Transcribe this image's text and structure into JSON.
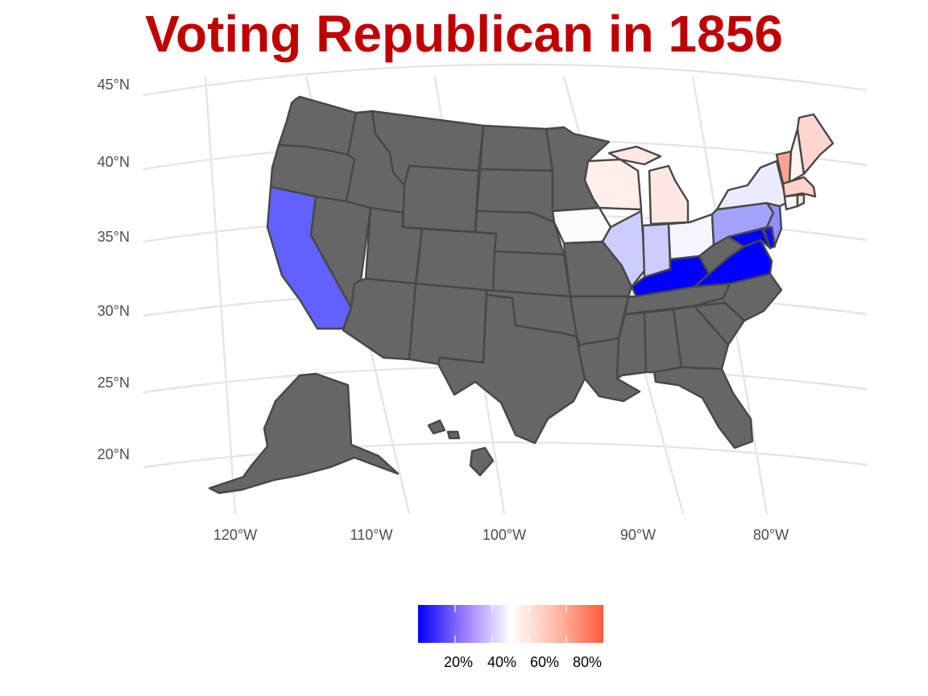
{
  "title": "Voting Republican in 1856",
  "colors": {
    "title": "#c00000",
    "no_data": "#666666",
    "state_border": "#474747",
    "gridline": "#e5e5e5",
    "scale_low": "#0000ff",
    "scale_mid": "#ffffff",
    "scale_high": "#ff5a3c"
  },
  "axes": {
    "lat_labels": [
      "45°N",
      "40°N",
      "35°N",
      "30°N",
      "25°N",
      "20°N"
    ],
    "lon_labels": [
      "120°W",
      "110°W",
      "100°W",
      "90°W",
      "80°W"
    ]
  },
  "legend": {
    "position": "bottom",
    "range": [
      0,
      1
    ],
    "tick_labels": [
      "20%",
      "40%",
      "60%",
      "80%"
    ],
    "tick_values": [
      0.2,
      0.4,
      0.6,
      0.8
    ]
  },
  "chart_data": {
    "type": "choropleth",
    "title": "Voting Republican in 1856",
    "grid": true,
    "legend_position": "bottom",
    "no_data_states": [
      "Washington",
      "Oregon",
      "Idaho",
      "Montana",
      "Wyoming",
      "Nevada",
      "Utah",
      "Colorado",
      "Arizona",
      "New Mexico",
      "North Dakota",
      "South Dakota",
      "Nebraska",
      "Kansas",
      "Oklahoma",
      "Texas",
      "Minnesota",
      "Missouri",
      "Arkansas",
      "Louisiana",
      "Mississippi",
      "Alabama",
      "Georgia",
      "Florida",
      "Tennessee",
      "North Carolina",
      "South Carolina",
      "West Virginia",
      "Alaska",
      "Hawaii"
    ],
    "values": [
      {
        "state": "California",
        "value": 0.19
      },
      {
        "state": "Kentucky",
        "value": 0.0
      },
      {
        "state": "Virginia",
        "value": 0.0
      },
      {
        "state": "Maryland",
        "value": 0.003
      },
      {
        "state": "Delaware",
        "value": 0.02
      },
      {
        "state": "Illinois",
        "value": 0.4
      },
      {
        "state": "Indiana",
        "value": 0.4
      },
      {
        "state": "Pennsylvania",
        "value": 0.32
      },
      {
        "state": "New Jersey",
        "value": 0.28
      },
      {
        "state": "Iowa",
        "value": 0.49
      },
      {
        "state": "Ohio",
        "value": 0.48
      },
      {
        "state": "New York",
        "value": 0.46
      },
      {
        "state": "Wisconsin",
        "value": 0.55
      },
      {
        "state": "Michigan",
        "value": 0.57
      },
      {
        "state": "Connecticut",
        "value": 0.53
      },
      {
        "state": "New Hampshire",
        "value": 0.54
      },
      {
        "state": "Rhode Island",
        "value": 0.58
      },
      {
        "state": "Maine",
        "value": 0.62
      },
      {
        "state": "Massachusetts",
        "value": 0.64
      },
      {
        "state": "Vermont",
        "value": 0.78
      }
    ]
  }
}
